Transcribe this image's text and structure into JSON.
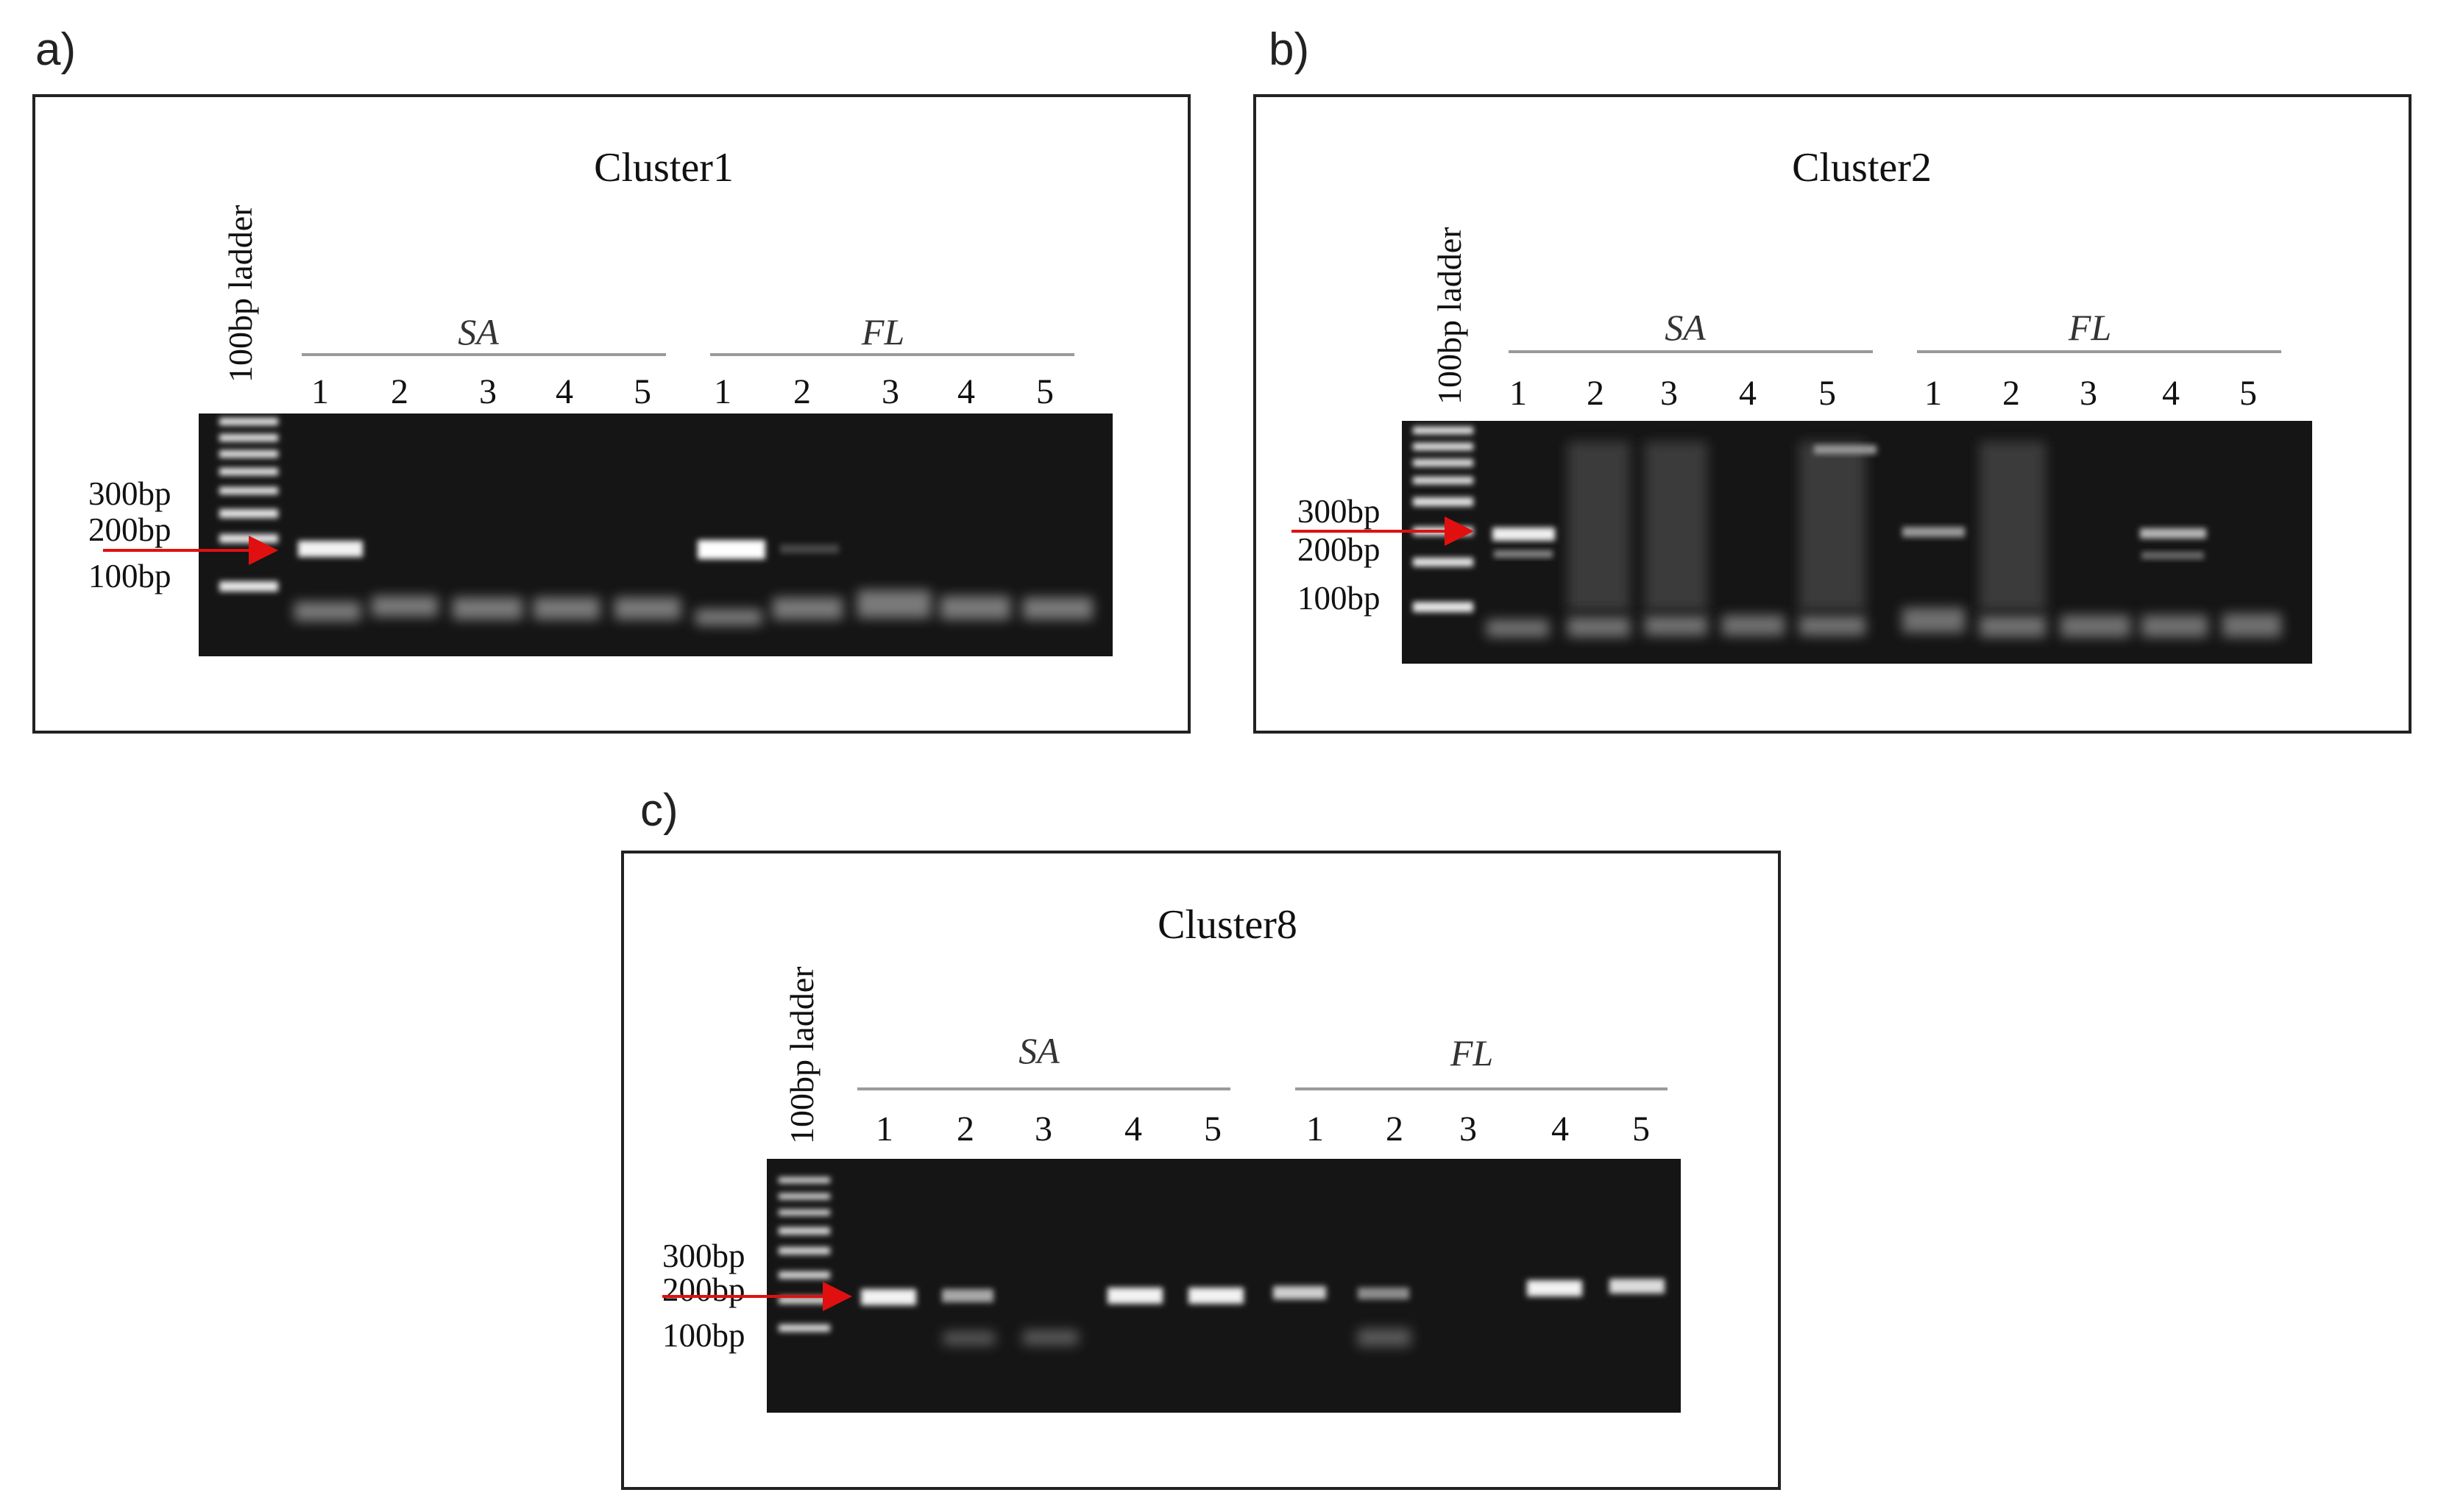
{
  "figure": {
    "panels": [
      {
        "letter": "a)",
        "title": "Cluster1",
        "ladder_label": "100bp ladder",
        "groups": [
          "SA",
          "FL"
        ],
        "lanes": [
          "1",
          "2",
          "3",
          "4",
          "5",
          "1",
          "2",
          "3",
          "4",
          "5"
        ],
        "size_markers": [
          "300bp",
          "200bp",
          "100bp"
        ]
      },
      {
        "letter": "b)",
        "title": "Cluster2",
        "ladder_label": "100bp ladder",
        "groups": [
          "SA",
          "FL"
        ],
        "lanes": [
          "1",
          "2",
          "3",
          "4",
          "5",
          "1",
          "2",
          "3",
          "4",
          "5"
        ],
        "size_markers": [
          "300bp",
          "200bp",
          "100bp"
        ]
      },
      {
        "letter": "c)",
        "title": "Cluster8",
        "ladder_label": "100bp ladder",
        "groups": [
          "SA",
          "FL"
        ],
        "lanes": [
          "1",
          "2",
          "3",
          "4",
          "5",
          "1",
          "2",
          "3",
          "4",
          "5"
        ],
        "size_markers": [
          "300bp",
          "200bp",
          "100bp"
        ]
      }
    ],
    "colors": {
      "gel_background": "#151515",
      "band": "#f2f2f2",
      "arrow": "#e01010",
      "frame": "#222222",
      "group_line": "#9a9a9a"
    }
  }
}
